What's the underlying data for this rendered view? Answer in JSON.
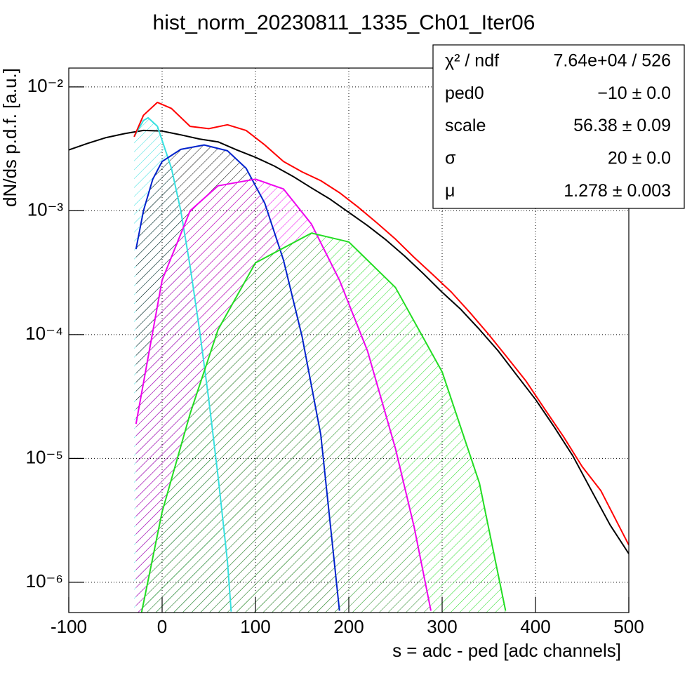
{
  "chart_data": {
    "type": "line",
    "title": "hist_norm_20230811_1335_Ch01_Iter06",
    "x_label": "s = adc - ped [adc channels]",
    "y_label": "dN/ds p.d.f. [a.u.]",
    "log_y": true,
    "grid": true,
    "xlim": [
      -100,
      500
    ],
    "xticks": [
      -100,
      0,
      100,
      200,
      300,
      400,
      500
    ],
    "ylim": [
      5.7e-07,
      0.0142
    ],
    "yticks": [
      {
        "value": 1e-06,
        "label": "10⁻⁶"
      },
      {
        "value": 1e-05,
        "label": "10⁻⁵"
      },
      {
        "value": 0.0001,
        "label": "10⁻⁴"
      },
      {
        "value": 0.001,
        "label": "10⁻³"
      },
      {
        "value": 0.01,
        "label": "10⁻²"
      }
    ],
    "series": [
      {
        "color": "#000000",
        "x": [
          -100,
          -80,
          -60,
          -40,
          -20,
          0,
          20,
          40,
          60,
          80,
          100,
          120,
          140,
          160,
          180,
          200,
          220,
          240,
          260,
          280,
          300,
          320,
          340,
          360,
          380,
          400,
          420,
          440,
          460,
          480,
          500
        ],
        "values": [
          0.0031,
          0.0035,
          0.0039,
          0.0042,
          0.00445,
          0.0044,
          0.0041,
          0.0038,
          0.0036,
          0.0031,
          0.0027,
          0.0023,
          0.0019,
          0.00153,
          0.00124,
          0.00097,
          0.00076,
          0.00058,
          0.00043,
          0.00031,
          0.00022,
          0.00016,
          0.00011,
          7.4e-05,
          4.7e-05,
          3e-05,
          1.8e-05,
          1.05e-05,
          5.5e-06,
          2.9e-06,
          1.7e-06
        ]
      },
      {
        "color": "#36e0e0",
        "hatch": "#36e0e0",
        "x": [
          -30,
          -20,
          -15,
          -5,
          10,
          20,
          30,
          40,
          50,
          60,
          70,
          74
        ],
        "values": [
          0.00396,
          0.00535,
          0.00563,
          0.00481,
          0.0022,
          0.001,
          0.000355,
          0.00011,
          2.98e-05,
          7.1e-06,
          1.47e-06,
          5.8e-07
        ]
      },
      {
        "color": "#0022cc",
        "hatch": "#000000",
        "x": [
          -28,
          -20,
          -10,
          0,
          20,
          45,
          70,
          90,
          110,
          130,
          150,
          170,
          190
        ],
        "values": [
          0.00049,
          0.001,
          0.0018,
          0.0025,
          0.00313,
          0.0034,
          0.00305,
          0.0022,
          0.00115,
          0.0004,
          9.6e-05,
          1.55e-05,
          5.9e-07
        ]
      },
      {
        "color": "#ee00ee",
        "hatch": "#ee00ee",
        "x": [
          -28,
          0,
          30,
          60,
          100,
          130,
          160,
          190,
          220,
          250,
          270,
          288
        ],
        "values": [
          1.9e-05,
          0.000275,
          0.001,
          0.00159,
          0.0018,
          0.0015,
          0.00078,
          0.000275,
          7.4e-05,
          1.2e-05,
          2.8e-06,
          5.9e-07
        ]
      },
      {
        "color": "#22dd22",
        "hatch": "#22dd22",
        "x": [
          -22,
          0,
          30,
          60,
          100,
          160,
          200,
          250,
          300,
          340,
          368
        ],
        "values": [
          5.7e-07,
          3.7e-06,
          2.3e-05,
          0.00011,
          0.00038,
          0.00066,
          0.00056,
          0.00024,
          5e-05,
          6.3e-06,
          5.9e-07
        ]
      },
      {
        "color": "#ff0000",
        "x": [
          -30,
          -20,
          -5,
          10,
          30,
          50,
          70,
          90,
          110,
          130,
          150,
          170,
          190,
          210,
          230,
          250,
          270,
          290,
          310,
          330,
          350,
          370,
          390,
          410,
          430,
          450,
          470,
          500
        ],
        "values": [
          0.00396,
          0.0059,
          0.0075,
          0.0067,
          0.0048,
          0.0046,
          0.00495,
          0.00445,
          0.0034,
          0.0025,
          0.00206,
          0.00175,
          0.0014,
          0.00107,
          0.0008,
          0.00059,
          0.00042,
          0.000305,
          0.00022,
          0.00015,
          0.0001,
          6.5e-05,
          4.2e-05,
          2.5e-05,
          1.5e-05,
          8.6e-06,
          5.5e-06,
          2e-06
        ]
      }
    ],
    "stats": [
      {
        "name": "χ² / ndf",
        "value": "7.64e+04 / 526"
      },
      {
        "name": "ped0",
        "value": "−10 ± 0.0"
      },
      {
        "name": "scale",
        "value": "56.38 ± 0.09"
      },
      {
        "name": "σ",
        "value": "20 ± 0.0"
      },
      {
        "name": "μ",
        "value": "1.278 ± 0.003"
      }
    ]
  }
}
